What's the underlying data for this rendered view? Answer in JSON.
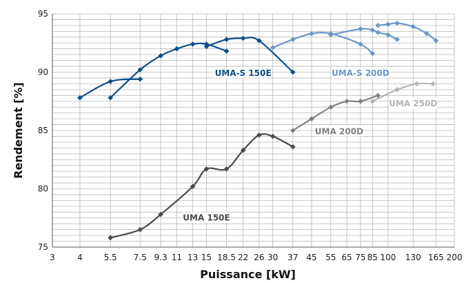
{
  "chart_data": {
    "type": "line",
    "xlabel": "Puissance [kW]",
    "ylabel": "Rendement [%]",
    "x_scale": "log",
    "x_ticks": [
      3,
      4,
      5.5,
      7.5,
      9.3,
      11,
      13,
      15,
      18.5,
      22,
      26,
      30,
      37,
      45,
      55,
      65,
      75,
      85,
      100,
      130,
      165,
      200
    ],
    "x_tick_labels": [
      "3",
      "4",
      "5.5",
      "7.5",
      "9.3",
      "11",
      "13",
      "15",
      "18.5",
      "22",
      "26",
      "30",
      "37",
      "45",
      "55",
      "65",
      "75",
      "85",
      "100",
      "130",
      "165",
      "200"
    ],
    "xlim": [
      3,
      200
    ],
    "ylim": [
      75,
      95
    ],
    "y_ticks": [
      75,
      80,
      85,
      90,
      95
    ],
    "y_tick_labels": [
      "75",
      "80",
      "85",
      "90",
      "95"
    ],
    "grid": true,
    "series": [
      {
        "name": "UMA-S 150E",
        "color": "#0d4f8b",
        "segments": [
          [
            [
              4,
              87.8
            ],
            [
              5.5,
              89.2
            ],
            [
              7.5,
              89.4
            ]
          ],
          [
            [
              5.5,
              87.8
            ],
            [
              7.5,
              90.2
            ],
            [
              9.3,
              91.4
            ],
            [
              11,
              92.0
            ],
            [
              13,
              92.4
            ],
            [
              15,
              92.4
            ],
            [
              18.5,
              91.8
            ]
          ],
          [
            [
              15,
              92.2
            ],
            [
              18.5,
              92.8
            ],
            [
              22,
              92.9
            ],
            [
              26,
              92.7
            ],
            [
              37,
              90.0
            ]
          ]
        ]
      },
      {
        "name": "UMA-S 200D",
        "color": "#6a96c9",
        "segments": [
          [
            [
              30,
              92.1
            ],
            [
              37,
              92.8
            ],
            [
              45,
              93.3
            ],
            [
              55,
              93.3
            ],
            [
              75,
              92.4
            ],
            [
              85,
              91.6
            ]
          ],
          [
            [
              55,
              93.2
            ],
            [
              75,
              93.7
            ],
            [
              85,
              93.6
            ],
            [
              90,
              93.4
            ],
            [
              100,
              93.2
            ],
            [
              110,
              92.8
            ]
          ],
          [
            [
              90,
              94.0
            ],
            [
              100,
              94.1
            ],
            [
              110,
              94.2
            ],
            [
              130,
              93.9
            ],
            [
              150,
              93.3
            ],
            [
              165,
              92.7
            ]
          ]
        ]
      },
      {
        "name": "UMA 150E",
        "color": "#4a4a4a",
        "segments": [
          [
            [
              5.5,
              75.8
            ],
            [
              7.5,
              76.5
            ],
            [
              9.3,
              77.8
            ],
            [
              13,
              80.2
            ],
            [
              15,
              81.7
            ],
            [
              18.5,
              81.7
            ],
            [
              22,
              83.3
            ],
            [
              26,
              84.6
            ],
            [
              30,
              84.5
            ],
            [
              37,
              83.6
            ]
          ]
        ]
      },
      {
        "name": "UMA 200D",
        "color": "#808080",
        "segments": [
          [
            [
              37,
              85.0
            ],
            [
              45,
              86.0
            ],
            [
              55,
              87.0
            ],
            [
              65,
              87.5
            ],
            [
              75,
              87.5
            ],
            [
              90,
              88.0
            ]
          ]
        ]
      },
      {
        "name": "UMA 250D",
        "color": "#b4b4b4",
        "segments": [
          [
            [
              85,
              87.5
            ],
            [
              110,
              88.5
            ],
            [
              135,
              89.0
            ],
            [
              160,
              89.0
            ]
          ]
        ]
      }
    ]
  }
}
